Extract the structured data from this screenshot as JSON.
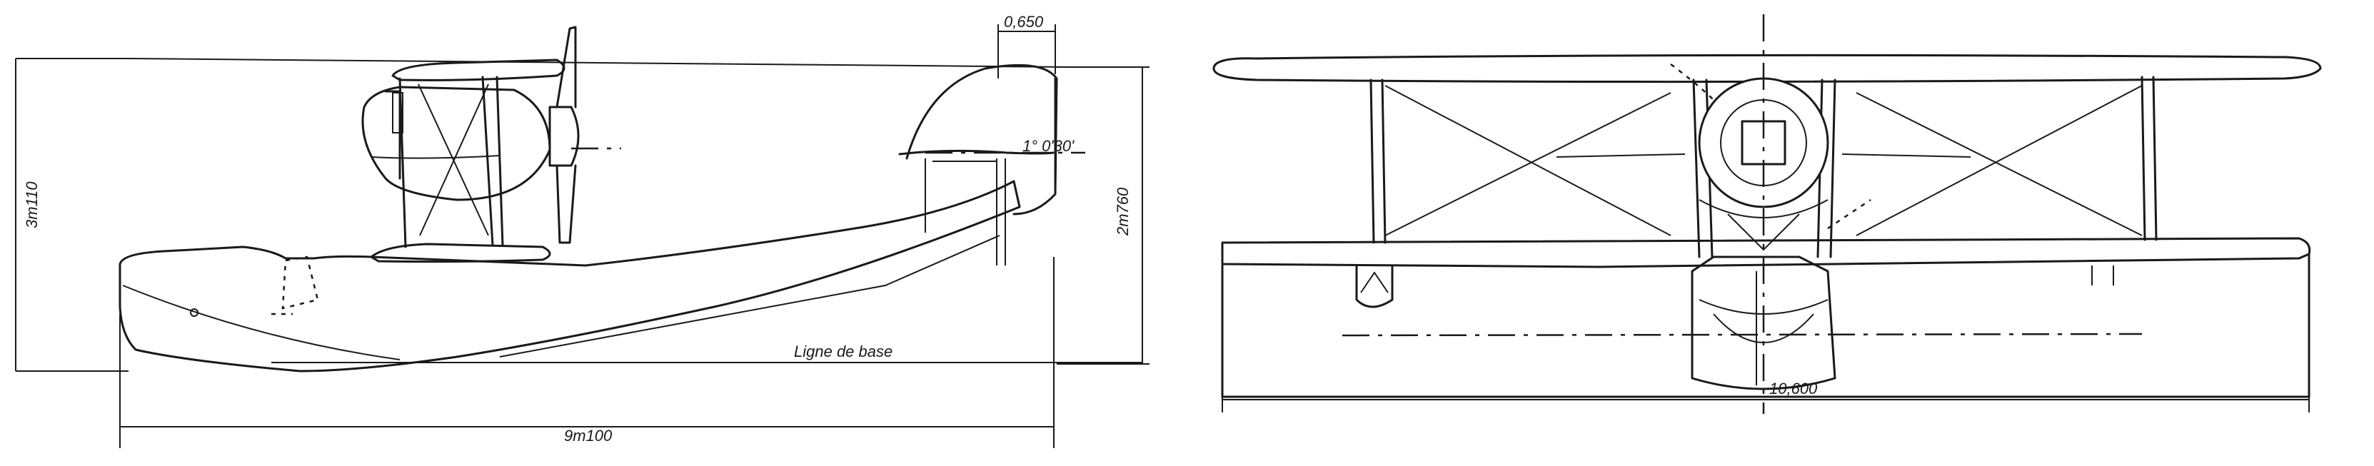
{
  "side_view": {
    "dim_height": "3m110",
    "dim_length": "9m100",
    "dim_tail_height": "2m760",
    "dim_offset": "0,650",
    "dim_angle": "1° 0'30'",
    "baseline_label": "Ligne de base"
  },
  "front_view": {
    "dim_span": "10,600"
  }
}
